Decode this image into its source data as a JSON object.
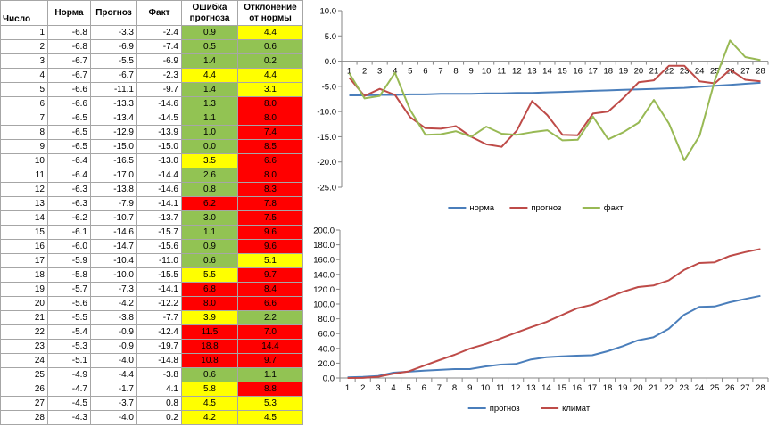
{
  "table": {
    "headers": [
      "Число",
      "Норма",
      "Прогноз",
      "Факт",
      "Ошибка прогноза",
      "Отклонение от нормы"
    ],
    "colors": {
      "green": "#92c353",
      "yellow": "#ffff00",
      "red": "#ff0000"
    },
    "rows": [
      {
        "day": "1",
        "norm": "-6.8",
        "forecast": "-3.3",
        "fact": "-2.4",
        "error": "0.9",
        "error_color": "green",
        "dev": "4.4",
        "dev_color": "yellow"
      },
      {
        "day": "2",
        "norm": "-6.8",
        "forecast": "-6.9",
        "fact": "-7.4",
        "error": "0.5",
        "error_color": "green",
        "dev": "0.6",
        "dev_color": "green"
      },
      {
        "day": "3",
        "norm": "-6.7",
        "forecast": "-5.5",
        "fact": "-6.9",
        "error": "1.4",
        "error_color": "green",
        "dev": "0.2",
        "dev_color": "green"
      },
      {
        "day": "4",
        "norm": "-6.7",
        "forecast": "-6.7",
        "fact": "-2.3",
        "error": "4.4",
        "error_color": "yellow",
        "dev": "4.4",
        "dev_color": "yellow"
      },
      {
        "day": "5",
        "norm": "-6.6",
        "forecast": "-11.1",
        "fact": "-9.7",
        "error": "1.4",
        "error_color": "green",
        "dev": "3.1",
        "dev_color": "yellow"
      },
      {
        "day": "6",
        "norm": "-6.6",
        "forecast": "-13.3",
        "fact": "-14.6",
        "error": "1.3",
        "error_color": "green",
        "dev": "8.0",
        "dev_color": "red"
      },
      {
        "day": "7",
        "norm": "-6.5",
        "forecast": "-13.4",
        "fact": "-14.5",
        "error": "1.1",
        "error_color": "green",
        "dev": "8.0",
        "dev_color": "red"
      },
      {
        "day": "8",
        "norm": "-6.5",
        "forecast": "-12.9",
        "fact": "-13.9",
        "error": "1.0",
        "error_color": "green",
        "dev": "7.4",
        "dev_color": "red"
      },
      {
        "day": "9",
        "norm": "-6.5",
        "forecast": "-15.0",
        "fact": "-15.0",
        "error": "0.0",
        "error_color": "green",
        "dev": "8.5",
        "dev_color": "red"
      },
      {
        "day": "10",
        "norm": "-6.4",
        "forecast": "-16.5",
        "fact": "-13.0",
        "error": "3.5",
        "error_color": "yellow",
        "dev": "6.6",
        "dev_color": "red"
      },
      {
        "day": "11",
        "norm": "-6.4",
        "forecast": "-17.0",
        "fact": "-14.4",
        "error": "2.6",
        "error_color": "green",
        "dev": "8.0",
        "dev_color": "red"
      },
      {
        "day": "12",
        "norm": "-6.3",
        "forecast": "-13.8",
        "fact": "-14.6",
        "error": "0.8",
        "error_color": "green",
        "dev": "8.3",
        "dev_color": "red"
      },
      {
        "day": "13",
        "norm": "-6.3",
        "forecast": "-7.9",
        "fact": "-14.1",
        "error": "6.2",
        "error_color": "red",
        "dev": "7.8",
        "dev_color": "red"
      },
      {
        "day": "14",
        "norm": "-6.2",
        "forecast": "-10.7",
        "fact": "-13.7",
        "error": "3.0",
        "error_color": "green",
        "dev": "7.5",
        "dev_color": "red"
      },
      {
        "day": "15",
        "norm": "-6.1",
        "forecast": "-14.6",
        "fact": "-15.7",
        "error": "1.1",
        "error_color": "green",
        "dev": "9.6",
        "dev_color": "red"
      },
      {
        "day": "16",
        "norm": "-6.0",
        "forecast": "-14.7",
        "fact": "-15.6",
        "error": "0.9",
        "error_color": "green",
        "dev": "9.6",
        "dev_color": "red"
      },
      {
        "day": "17",
        "norm": "-5.9",
        "forecast": "-10.4",
        "fact": "-11.0",
        "error": "0.6",
        "error_color": "green",
        "dev": "5.1",
        "dev_color": "yellow"
      },
      {
        "day": "18",
        "norm": "-5.8",
        "forecast": "-10.0",
        "fact": "-15.5",
        "error": "5.5",
        "error_color": "yellow",
        "dev": "9.7",
        "dev_color": "red"
      },
      {
        "day": "19",
        "norm": "-5.7",
        "forecast": "-7.3",
        "fact": "-14.1",
        "error": "6.8",
        "error_color": "red",
        "dev": "8.4",
        "dev_color": "red"
      },
      {
        "day": "20",
        "norm": "-5.6",
        "forecast": "-4.2",
        "fact": "-12.2",
        "error": "8.0",
        "error_color": "red",
        "dev": "6.6",
        "dev_color": "red"
      },
      {
        "day": "21",
        "norm": "-5.5",
        "forecast": "-3.8",
        "fact": "-7.7",
        "error": "3.9",
        "error_color": "yellow",
        "dev": "2.2",
        "dev_color": "green"
      },
      {
        "day": "22",
        "norm": "-5.4",
        "forecast": "-0.9",
        "fact": "-12.4",
        "error": "11.5",
        "error_color": "red",
        "dev": "7.0",
        "dev_color": "red"
      },
      {
        "day": "23",
        "norm": "-5.3",
        "forecast": "-0.9",
        "fact": "-19.7",
        "error": "18.8",
        "error_color": "red",
        "dev": "14.4",
        "dev_color": "red"
      },
      {
        "day": "24",
        "norm": "-5.1",
        "forecast": "-4.0",
        "fact": "-14.8",
        "error": "10.8",
        "error_color": "red",
        "dev": "9.7",
        "dev_color": "red"
      },
      {
        "day": "25",
        "norm": "-4.9",
        "forecast": "-4.4",
        "fact": "-3.8",
        "error": "0.6",
        "error_color": "green",
        "dev": "1.1",
        "dev_color": "green"
      },
      {
        "day": "26",
        "norm": "-4.7",
        "forecast": "-1.7",
        "fact": "4.1",
        "error": "5.8",
        "error_color": "yellow",
        "dev": "8.8",
        "dev_color": "red"
      },
      {
        "day": "27",
        "norm": "-4.5",
        "forecast": "-3.7",
        "fact": "0.8",
        "error": "4.5",
        "error_color": "yellow",
        "dev": "5.3",
        "dev_color": "yellow"
      },
      {
        "day": "28",
        "norm": "-4.3",
        "forecast": "-4.0",
        "fact": "0.2",
        "error": "4.2",
        "error_color": "yellow",
        "dev": "4.5",
        "dev_color": "yellow"
      }
    ]
  },
  "chart_data": [
    {
      "type": "line",
      "title": "",
      "xlabel": "",
      "ylabel": "",
      "x": [
        1,
        2,
        3,
        4,
        5,
        6,
        7,
        8,
        9,
        10,
        11,
        12,
        13,
        14,
        15,
        16,
        17,
        18,
        19,
        20,
        21,
        22,
        23,
        24,
        25,
        26,
        27,
        28
      ],
      "ylim": [
        -25,
        10
      ],
      "yticks": [
        "10.0",
        "5.0",
        "0.0",
        "-5.0",
        "-10.0",
        "-15.0",
        "-20.0",
        "-25.0"
      ],
      "ytick_values": [
        10,
        5,
        0,
        -5,
        -10,
        -15,
        -20,
        -25
      ],
      "x_labels_at": 0,
      "grid": false,
      "legend": "bottom",
      "series": [
        {
          "name": "норма",
          "color": "#4a7ebb",
          "values": [
            -6.8,
            -6.8,
            -6.7,
            -6.7,
            -6.6,
            -6.6,
            -6.5,
            -6.5,
            -6.5,
            -6.4,
            -6.4,
            -6.3,
            -6.3,
            -6.2,
            -6.1,
            -6.0,
            -5.9,
            -5.8,
            -5.7,
            -5.6,
            -5.5,
            -5.4,
            -5.3,
            -5.1,
            -4.9,
            -4.7,
            -4.5,
            -4.3
          ]
        },
        {
          "name": "прогноз",
          "color": "#be4b48",
          "values": [
            -3.3,
            -6.9,
            -5.5,
            -6.7,
            -11.1,
            -13.3,
            -13.4,
            -12.9,
            -15.0,
            -16.5,
            -17.0,
            -13.8,
            -7.9,
            -10.7,
            -14.6,
            -14.7,
            -10.4,
            -10.0,
            -7.3,
            -4.2,
            -3.8,
            -0.9,
            -0.9,
            -4.0,
            -4.4,
            -1.7,
            -3.7,
            -4.0
          ]
        },
        {
          "name": "факт",
          "color": "#98b954",
          "values": [
            -2.4,
            -7.4,
            -6.9,
            -2.3,
            -9.7,
            -14.6,
            -14.5,
            -13.9,
            -15.0,
            -13.0,
            -14.4,
            -14.6,
            -14.1,
            -13.7,
            -15.7,
            -15.6,
            -11.0,
            -15.5,
            -14.1,
            -12.2,
            -7.7,
            -12.4,
            -19.7,
            -14.8,
            -3.8,
            4.1,
            0.8,
            0.2
          ]
        }
      ]
    },
    {
      "type": "line",
      "title": "",
      "xlabel": "",
      "ylabel": "",
      "x": [
        1,
        2,
        3,
        4,
        5,
        6,
        7,
        8,
        9,
        10,
        11,
        12,
        13,
        14,
        15,
        16,
        17,
        18,
        19,
        20,
        21,
        22,
        23,
        24,
        25,
        26,
        27,
        28
      ],
      "ylim": [
        0,
        200
      ],
      "yticks": [
        "200.0",
        "180.0",
        "160.0",
        "140.0",
        "120.0",
        "100.0",
        "80.0",
        "60.0",
        "40.0",
        "20.0",
        "0.0"
      ],
      "ytick_values": [
        200,
        180,
        160,
        140,
        120,
        100,
        80,
        60,
        40,
        20,
        0
      ],
      "x_labels_at": 0,
      "grid": false,
      "legend": "bottom",
      "series": [
        {
          "name": "прогноз",
          "color": "#4a7ebb",
          "values": [
            0.9,
            1.4,
            2.8,
            7.2,
            8.6,
            9.9,
            11.0,
            12.0,
            12.0,
            15.5,
            18.1,
            18.9,
            25.1,
            28.1,
            29.2,
            30.1,
            30.7,
            36.2,
            43.0,
            51.0,
            54.9,
            66.4,
            85.2,
            96.0,
            96.6,
            102.4,
            106.9,
            111.1
          ]
        },
        {
          "name": "климат",
          "color": "#be4b48",
          "values": [
            0.0,
            0.1,
            1.7,
            5.9,
            8.9,
            16.6,
            24.1,
            31.3,
            39.6,
            45.7,
            53.2,
            61.1,
            68.5,
            75.7,
            84.9,
            94.1,
            99.0,
            108.4,
            116.5,
            122.9,
            125.0,
            131.8,
            145.9,
            155.4,
            156.4,
            165.0,
            170.1,
            174.3
          ]
        }
      ]
    }
  ]
}
